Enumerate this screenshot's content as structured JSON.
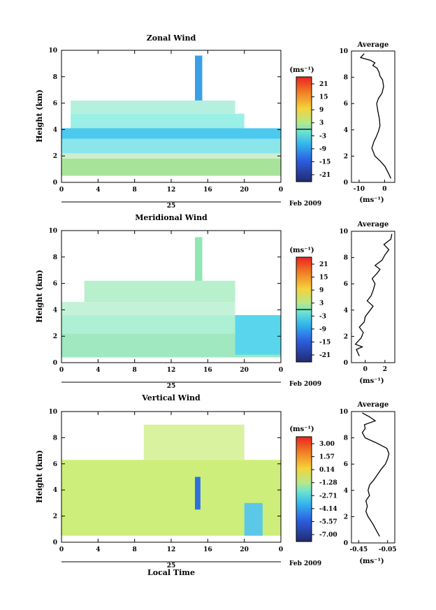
{
  "chart_data": [
    {
      "type": "heatmap",
      "title": "Zonal Wind",
      "ylabel": "Height (km)",
      "ylim": [
        0,
        10
      ],
      "yticks": [
        "0",
        "2",
        "4",
        "6",
        "8",
        "10"
      ],
      "xlim": [
        0,
        24
      ],
      "xticks": [
        "0",
        "4",
        "8",
        "12",
        "16",
        "20",
        "0"
      ],
      "date_label": "Feb 2009",
      "day_label": "25",
      "colorbar": {
        "unit": "(ms⁻¹)",
        "ticks": [
          "21",
          "15",
          "9",
          "3",
          "-3",
          "-9",
          "-15",
          "-21"
        ],
        "zero_line": true
      },
      "layers": [
        {
          "y0": 0.5,
          "y1": 1.8,
          "x0": 0,
          "x1": 24,
          "value": 4,
          "color": "#a8e39a"
        },
        {
          "y0": 1.8,
          "y1": 2.2,
          "x0": 0,
          "x1": 24,
          "value": 0,
          "color": "#cfeecf"
        },
        {
          "y0": 2.2,
          "y1": 3.3,
          "x0": 0,
          "x1": 24,
          "value": -2,
          "color": "#8ae6ea"
        },
        {
          "y0": 3.3,
          "y1": 4.1,
          "x0": 0,
          "x1": 24,
          "value": -5,
          "color": "#4cc9ee"
        },
        {
          "y0": 4.1,
          "y1": 5.2,
          "x0": 1,
          "x1": 20,
          "value": -1,
          "color": "#9cefe6"
        },
        {
          "y0": 5.2,
          "y1": 6.2,
          "x0": 1,
          "x1": 19,
          "value": 0,
          "color": "#b5f0de"
        },
        {
          "y0": 6.2,
          "y1": 9.6,
          "x0": 14.6,
          "x1": 15.4,
          "value": -7,
          "color": "#3aa0e6"
        }
      ],
      "average_profile": {
        "title": "Average",
        "xlabel": "(ms⁻¹)",
        "xticks": [
          "-10",
          "0"
        ],
        "xlim": [
          -13,
          4
        ],
        "x": [
          2.5,
          1.5,
          0.2,
          -1.6,
          -3.8,
          -5.0,
          -4.2,
          -3.2,
          -2.4,
          -1.8,
          -2.0,
          -2.6,
          -3.1,
          -2.4,
          -1.0,
          -0.4,
          -0.8,
          -1.8,
          -2.2,
          -3.0,
          -4.6,
          -3.8,
          -5.6,
          -9.4,
          -8.0
        ],
        "y": [
          0.3,
          0.7,
          1.2,
          1.6,
          2.0,
          2.6,
          3.1,
          3.5,
          3.9,
          4.3,
          4.8,
          5.4,
          6.0,
          6.4,
          6.8,
          7.3,
          7.8,
          8.1,
          8.4,
          8.7,
          8.9,
          9.1,
          9.3,
          9.5,
          9.8
        ]
      }
    },
    {
      "type": "heatmap",
      "title": "Meridional Wind",
      "ylabel": "Height (km)",
      "ylim": [
        0,
        10
      ],
      "yticks": [
        "0",
        "2",
        "4",
        "6",
        "8",
        "10"
      ],
      "xlim": [
        0,
        24
      ],
      "xticks": [
        "0",
        "4",
        "8",
        "12",
        "16",
        "20",
        "0"
      ],
      "date_label": "Feb 2009",
      "day_label": "25",
      "colorbar": {
        "unit": "(ms⁻¹)",
        "ticks": [
          "21",
          "15",
          "9",
          "3",
          "-3",
          "-9",
          "-15",
          "-21"
        ],
        "zero_line": true
      },
      "layers": [
        {
          "y0": 0.4,
          "y1": 2.2,
          "x0": 0,
          "x1": 24,
          "value": 1,
          "color": "#9fe8c0"
        },
        {
          "y0": 2.2,
          "y1": 3.6,
          "x0": 0,
          "x1": 24,
          "value": 0,
          "color": "#aef0d4"
        },
        {
          "y0": 3.6,
          "y1": 4.6,
          "x0": 0,
          "x1": 19,
          "value": 0,
          "color": "#c4f2d8"
        },
        {
          "y0": 4.6,
          "y1": 6.2,
          "x0": 2.5,
          "x1": 19,
          "value": 1,
          "color": "#b8efcc"
        },
        {
          "y0": 0.6,
          "y1": 3.6,
          "x0": 19,
          "x1": 24,
          "value": -3,
          "color": "#59d6ee"
        },
        {
          "y0": 6.2,
          "y1": 9.5,
          "x0": 14.6,
          "x1": 15.4,
          "value": 2,
          "color": "#8fe7b4"
        }
      ],
      "average_profile": {
        "title": "Average",
        "xlabel": "(ms⁻¹)",
        "xticks": [
          "0",
          "2"
        ],
        "xlim": [
          -1.4,
          3.0
        ],
        "x": [
          -0.6,
          -0.9,
          -0.3,
          -1.0,
          -0.4,
          -0.2,
          -0.6,
          -0.1,
          0.0,
          0.4,
          0.8,
          0.2,
          0.6,
          0.8,
          1.0,
          0.7,
          1.2,
          1.5,
          1.0,
          1.7,
          2.0,
          2.4,
          1.9,
          2.6,
          2.7
        ],
        "y": [
          0.5,
          1.0,
          1.2,
          1.4,
          1.9,
          2.3,
          2.7,
          3.1,
          3.5,
          3.9,
          4.3,
          4.7,
          5.1,
          5.5,
          6.0,
          6.4,
          6.8,
          7.1,
          7.4,
          7.8,
          8.2,
          8.6,
          9.0,
          9.4,
          9.8
        ]
      }
    },
    {
      "type": "heatmap",
      "title": "Vertical Wind",
      "ylabel": "Height (km)",
      "ylim": [
        0,
        10
      ],
      "yticks": [
        "0",
        "2",
        "4",
        "6",
        "8",
        "10"
      ],
      "xlim": [
        0,
        24
      ],
      "xticks": [
        "0",
        "4",
        "8",
        "12",
        "16",
        "20",
        "0"
      ],
      "xlabel": "Local Time",
      "date_label": "Feb 2009",
      "day_label": "25",
      "colorbar": {
        "unit": "(ms⁻¹)",
        "ticks": [
          "3.00",
          "1.57",
          "0.14",
          "-1.28",
          "-2.71",
          "-4.14",
          "-5.57",
          "-7.00"
        ],
        "zero_line": false
      },
      "layers": [
        {
          "y0": 0.5,
          "y1": 6.3,
          "x0": 0,
          "x1": 24,
          "value": 0.5,
          "color": "#cdee7a"
        },
        {
          "y0": 6.3,
          "y1": 9.0,
          "x0": 9,
          "x1": 20,
          "value": 0.5,
          "color": "#d8f2a0"
        },
        {
          "y0": 2.5,
          "y1": 5.0,
          "x0": 14.6,
          "x1": 15.2,
          "value": -4.5,
          "color": "#2f6fe0"
        },
        {
          "y0": 0.5,
          "y1": 3.0,
          "x0": 20,
          "x1": 22,
          "value": -2,
          "color": "#5cc8e8"
        }
      ],
      "average_profile": {
        "title": "Average",
        "xlabel": "(ms⁻¹)",
        "xticks": [
          "-0.45",
          "-0.05"
        ],
        "xlim": [
          -0.55,
          0.05
        ],
        "x": [
          -0.16,
          -0.21,
          -0.26,
          -0.32,
          -0.35,
          -0.33,
          -0.35,
          -0.3,
          -0.32,
          -0.3,
          -0.24,
          -0.19,
          -0.14,
          -0.08,
          -0.05,
          -0.03,
          -0.06,
          -0.2,
          -0.36,
          -0.4,
          -0.36,
          -0.37,
          -0.22,
          -0.3,
          -0.4
        ],
        "y": [
          0.5,
          1.0,
          1.5,
          2.0,
          2.4,
          2.8,
          3.2,
          3.6,
          4.0,
          4.4,
          4.8,
          5.2,
          5.6,
          6.0,
          6.4,
          6.8,
          7.2,
          7.6,
          8.0,
          8.4,
          8.7,
          9.0,
          9.3,
          9.6,
          9.9
        ]
      }
    }
  ]
}
